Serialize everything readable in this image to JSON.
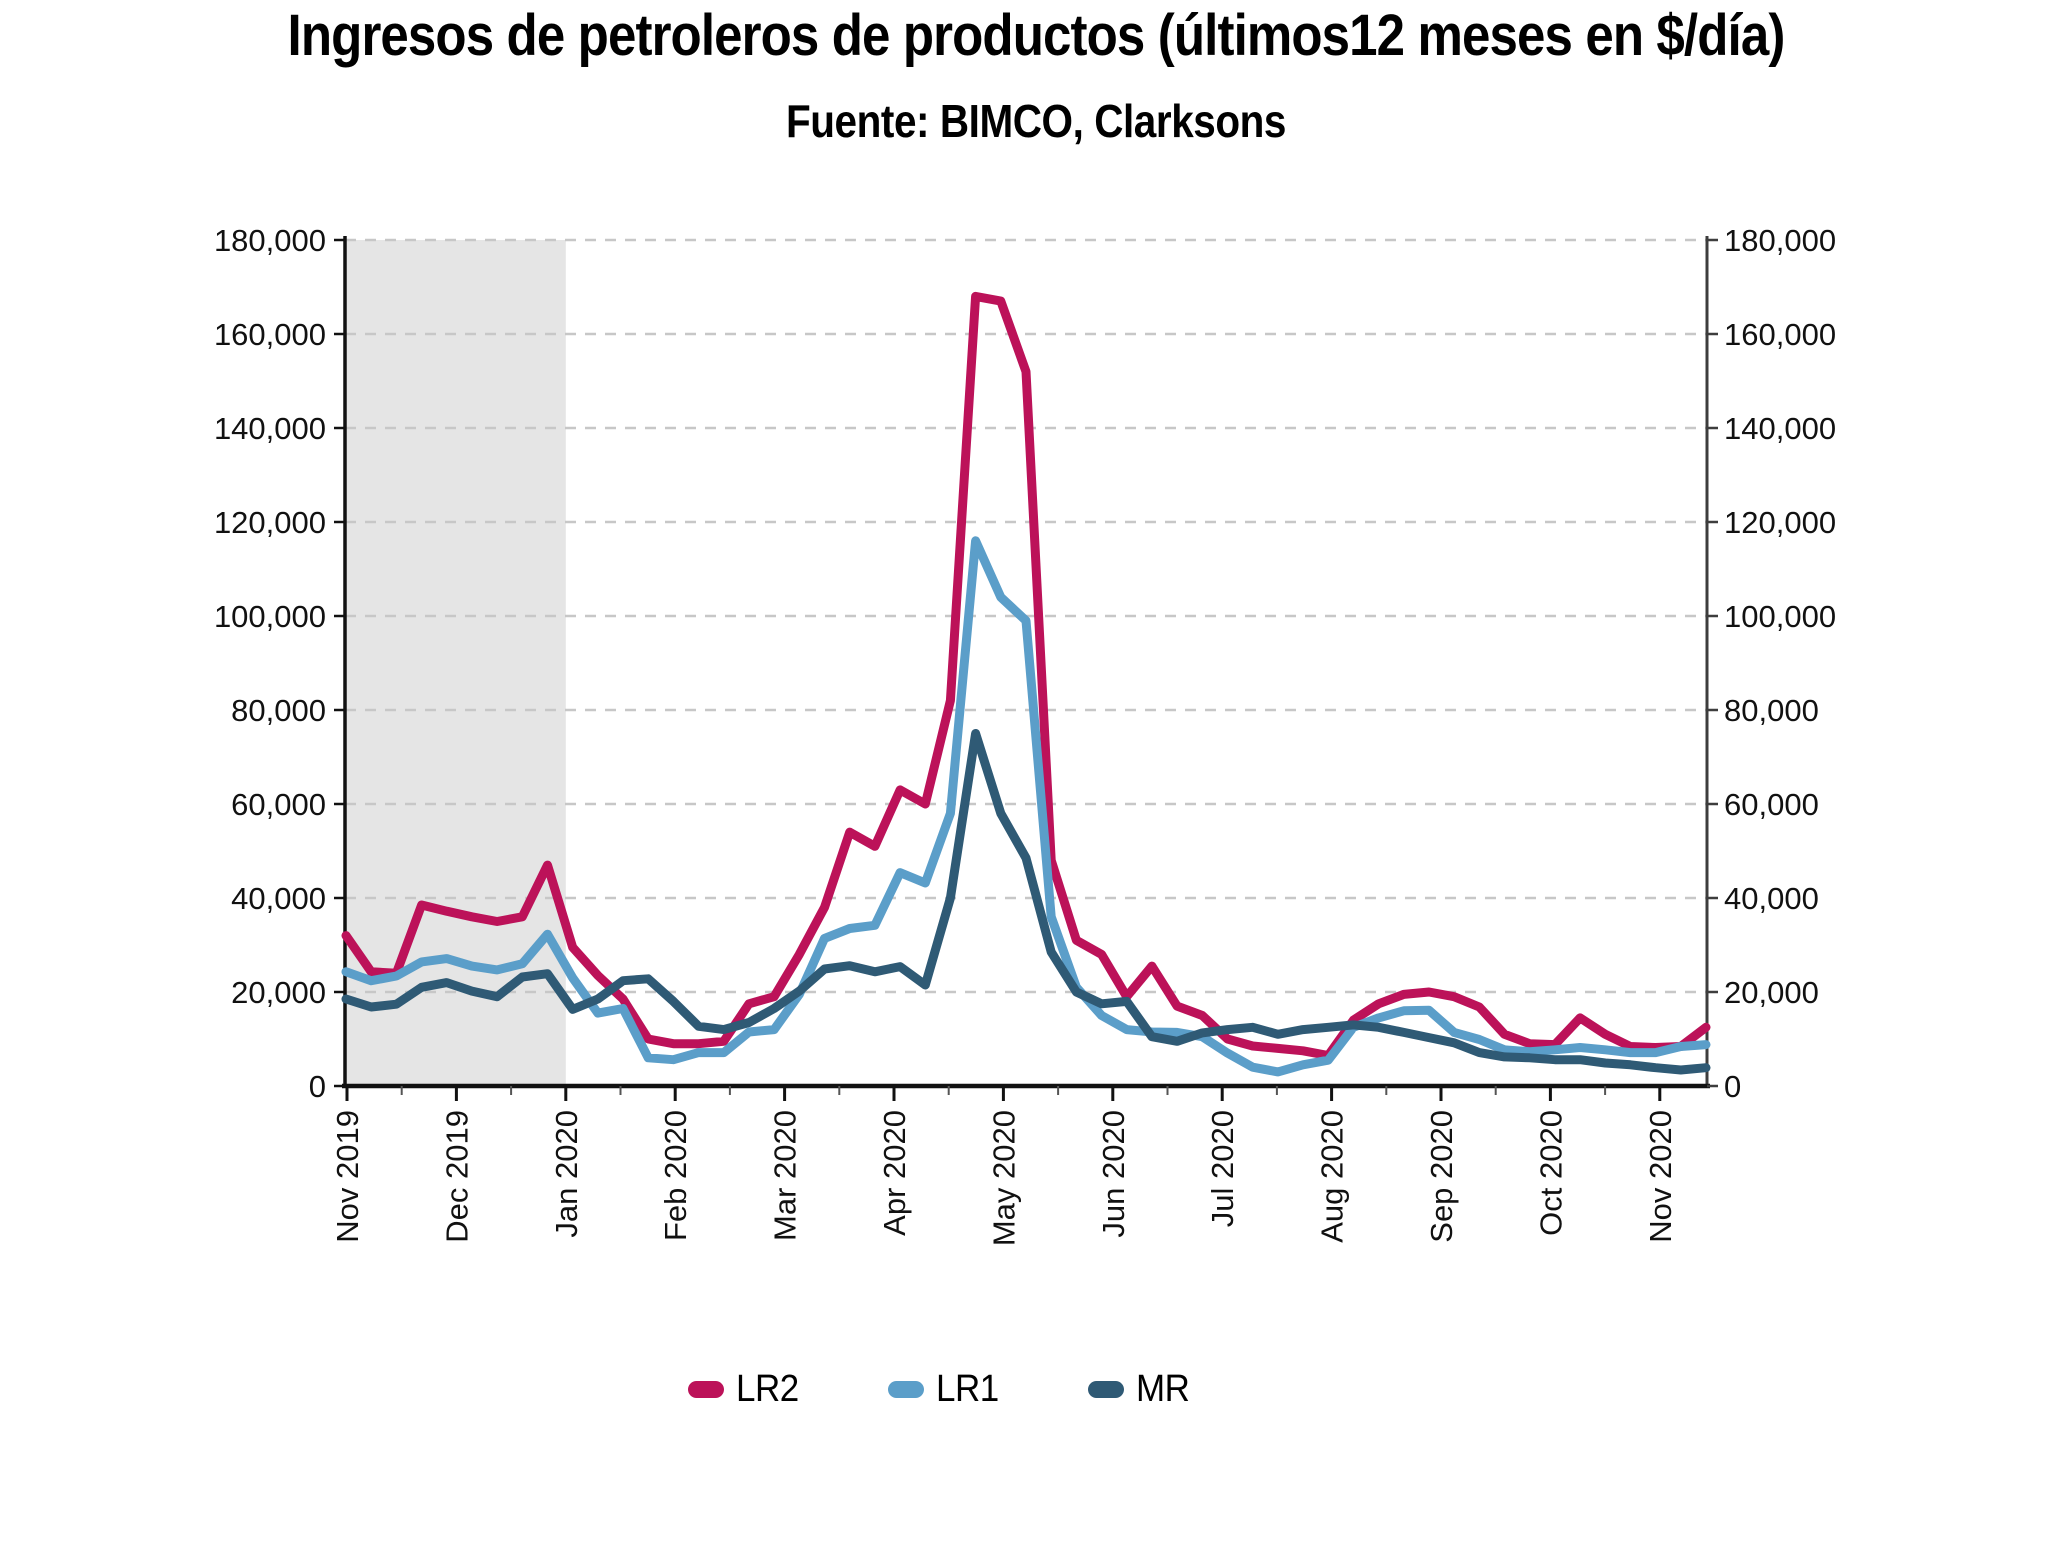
{
  "chart_data": {
    "type": "line",
    "title": "Ingresos de petroleros de productos (últimos12 meses en $/día)",
    "subtitle": "Fuente: BIMCO, Clarksons",
    "xlabel": "",
    "ylabel": "",
    "ylim": [
      0,
      180000
    ],
    "y_tick_step": 20000,
    "y_tick_labels": [
      "0",
      "20,000",
      "40,000",
      "60,000",
      "80,000",
      "100,000",
      "120,000",
      "140,000",
      "160,000",
      "180,000"
    ],
    "y_axis_sides": "both",
    "grid": "dashed-horizontal",
    "x_tick_labels": [
      "Nov 2019",
      "Dec 2019",
      "Jan 2020",
      "Feb 2020",
      "Mar 2020",
      "Apr 2020",
      "May 2020",
      "Jun 2020",
      "Jul 2020",
      "Aug 2020",
      "Sep 2020",
      "Oct 2020",
      "Nov 2020"
    ],
    "x_resolution": "weekly",
    "shaded_region": {
      "label": "Nov 2019 - Jan 2020",
      "from_month_index": 0,
      "to_month_index": 2,
      "color": "#e5e5e5"
    },
    "legend_position": "bottom",
    "colors": {
      "grid": "#c7c7c7",
      "axis": "#111111",
      "right_axis": "#3d3d3d",
      "text": "#111111"
    },
    "series": [
      {
        "name": "LR2",
        "color": "#bc1259",
        "values": [
          32000,
          24300,
          24000,
          38500,
          37200,
          36000,
          35000,
          36000,
          47000,
          29500,
          23500,
          18500,
          10000,
          9000,
          9000,
          9500,
          17500,
          19000,
          28000,
          38000,
          54000,
          51000,
          63000,
          60000,
          82000,
          168000,
          167000,
          152000,
          48000,
          31000,
          28000,
          19000,
          25500,
          17000,
          15000,
          10000,
          8500,
          8000,
          7500,
          6500,
          14000,
          17500,
          19500,
          20000,
          19000,
          16800,
          11000,
          9000,
          8800,
          14500,
          11000,
          8400,
          8200,
          8400,
          12500
        ]
      },
      {
        "name": "LR1",
        "color": "#5b9ec9",
        "values": [
          24300,
          22400,
          23400,
          26400,
          27100,
          25500,
          24700,
          26000,
          32300,
          23000,
          15500,
          16500,
          6000,
          5600,
          7100,
          7100,
          11500,
          12000,
          19500,
          31400,
          33500,
          34200,
          45400,
          43200,
          58000,
          116000,
          104000,
          99000,
          36000,
          21000,
          15000,
          12000,
          11500,
          11400,
          10500,
          7000,
          4000,
          3000,
          4500,
          5500,
          12500,
          14500,
          16000,
          16100,
          11400,
          9900,
          7700,
          7300,
          7700,
          8200,
          7700,
          7100,
          7100,
          8400,
          8800
        ]
      },
      {
        "name": "MR",
        "color": "#2f5a75",
        "values": [
          18500,
          16800,
          17400,
          21000,
          22000,
          20200,
          19000,
          23200,
          23900,
          16300,
          18500,
          22400,
          22800,
          18000,
          12700,
          12000,
          13500,
          16500,
          20200,
          24900,
          25600,
          24300,
          25400,
          21500,
          40000,
          75000,
          58000,
          48500,
          28500,
          20000,
          17500,
          18000,
          10500,
          9500,
          11300,
          12000,
          12500,
          11000,
          12000,
          12500,
          13000,
          12500,
          11400,
          10300,
          9200,
          7100,
          6200,
          6000,
          5600,
          5600,
          4900,
          4500,
          3900,
          3400,
          3900
        ]
      }
    ]
  },
  "legend": {
    "items": [
      {
        "label": "LR2",
        "color": "#bc1259"
      },
      {
        "label": "LR1",
        "color": "#5b9ec9"
      },
      {
        "label": "MR",
        "color": "#2f5a75"
      }
    ]
  }
}
